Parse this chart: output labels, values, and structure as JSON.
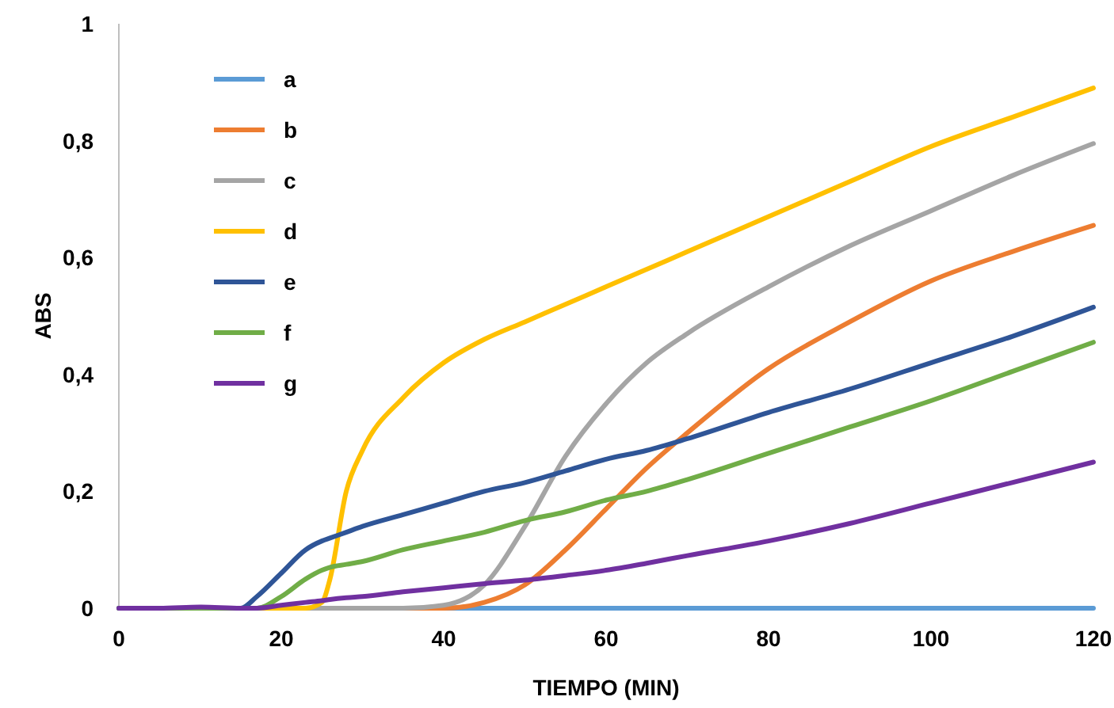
{
  "chart_data": {
    "type": "line",
    "xlabel": "TIEMPO (MIN)",
    "ylabel": "ABS",
    "x": [
      0,
      5,
      10,
      15,
      17,
      20,
      23,
      25,
      26,
      28,
      30,
      35,
      40,
      45,
      50,
      55,
      60,
      65,
      70,
      80,
      90,
      100,
      110,
      120
    ],
    "xlim": [
      0,
      120
    ],
    "xticks": [
      0,
      20,
      40,
      60,
      80,
      100,
      120
    ],
    "ylim": [
      0,
      1
    ],
    "yticks": [
      0,
      {
        "value": 0.2,
        "label": "0,2"
      },
      {
        "value": 0.4,
        "label": "0,4"
      },
      {
        "value": 0.6,
        "label": "0,6"
      },
      {
        "value": 0.8,
        "label": "0,8"
      },
      1
    ],
    "grid": false,
    "legend": "top left",
    "marker": "none",
    "line_style": "solid",
    "series": [
      {
        "name": "a",
        "color": "#5b9bd5",
        "values": [
          null,
          null,
          0,
          0,
          0,
          0,
          0,
          0,
          0,
          0,
          0,
          0,
          0,
          0,
          0,
          0,
          0,
          0,
          0,
          0,
          0,
          0,
          0,
          0
        ]
      },
      {
        "name": "b",
        "color": "#ed7d31",
        "values": [
          null,
          null,
          null,
          0,
          0,
          0,
          0,
          0,
          0,
          0,
          0,
          0,
          0,
          0.01,
          0.04,
          0.1,
          0.17,
          0.24,
          0.3,
          0.41,
          0.49,
          0.56,
          0.61,
          0.655
        ]
      },
      {
        "name": "c",
        "color": "#a5a5a5",
        "values": [
          0,
          0,
          0,
          0,
          0,
          0,
          0,
          0,
          0,
          0,
          0,
          0,
          0.005,
          0.04,
          0.14,
          0.26,
          0.35,
          0.42,
          0.47,
          0.55,
          0.62,
          0.68,
          0.74,
          0.795
        ]
      },
      {
        "name": "d",
        "color": "#ffc000",
        "values": [
          null,
          null,
          null,
          0,
          0,
          0,
          0,
          0.01,
          0.05,
          0.2,
          0.27,
          0.36,
          0.42,
          0.46,
          0.49,
          0.52,
          0.55,
          0.58,
          0.61,
          0.67,
          0.73,
          0.79,
          0.84,
          0.89
        ]
      },
      {
        "name": "e",
        "color": "#2f5597",
        "values": [
          0,
          0,
          0,
          0,
          0.02,
          0.06,
          0.1,
          0.115,
          0.12,
          0.13,
          0.14,
          0.16,
          0.18,
          0.2,
          0.215,
          0.235,
          0.255,
          0.27,
          0.29,
          0.335,
          0.375,
          0.42,
          0.465,
          0.515
        ]
      },
      {
        "name": "f",
        "color": "#70ad47",
        "values": [
          0,
          0,
          0,
          0,
          0,
          0.02,
          0.05,
          0.065,
          0.07,
          0.075,
          0.08,
          0.1,
          0.115,
          0.13,
          0.15,
          0.165,
          0.185,
          0.2,
          0.22,
          0.265,
          0.31,
          0.355,
          0.405,
          0.455
        ]
      },
      {
        "name": "g",
        "color": "#7030a0",
        "values": [
          0,
          0,
          0.002,
          0,
          0,
          0.005,
          0.01,
          0.013,
          0.015,
          0.018,
          0.02,
          0.028,
          0.035,
          0.042,
          0.048,
          0.056,
          0.065,
          0.077,
          0.09,
          0.115,
          0.145,
          0.18,
          0.215,
          0.25
        ]
      }
    ]
  }
}
